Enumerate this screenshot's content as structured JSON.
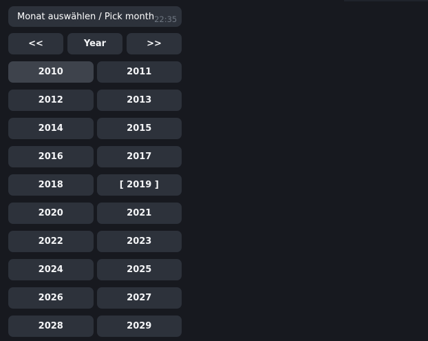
{
  "message": {
    "text": "Monat auswählen / Pick month",
    "time": "22:35"
  },
  "nav": {
    "prev_label": "<<",
    "year_label": "Year",
    "next_label": ">>"
  },
  "years": {
    "items": [
      {
        "label": "2010",
        "highlighted": true
      },
      {
        "label": "2011"
      },
      {
        "label": "2012"
      },
      {
        "label": "2013"
      },
      {
        "label": "2014"
      },
      {
        "label": "2015"
      },
      {
        "label": "2016"
      },
      {
        "label": "2017"
      },
      {
        "label": "2018"
      },
      {
        "label": "[ 2019 ]",
        "selected": true
      },
      {
        "label": "2020"
      },
      {
        "label": "2021"
      },
      {
        "label": "2022"
      },
      {
        "label": "2023"
      },
      {
        "label": "2024"
      },
      {
        "label": "2025"
      },
      {
        "label": "2026"
      },
      {
        "label": "2027"
      },
      {
        "label": "2028"
      },
      {
        "label": "2029"
      }
    ]
  },
  "colors": {
    "background": "#17191f",
    "button_bg": "#2d323b",
    "button_hover_bg": "#3e434c",
    "button_text": "#f4f5f7",
    "message_text": "#ffffff",
    "timestamp_text": "#6e7681",
    "top_edge": "#20232b"
  }
}
